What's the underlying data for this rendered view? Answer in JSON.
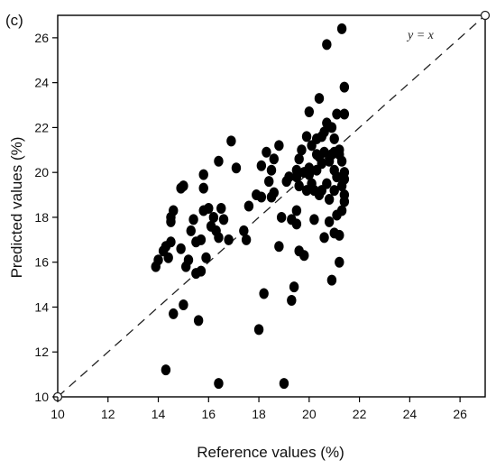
{
  "panel_label": "(c)",
  "chart_data": {
    "type": "scatter",
    "title": "",
    "xlabel": "Reference values (%)",
    "ylabel": "Predicted values (%)",
    "xlim": [
      10,
      27
    ],
    "ylim": [
      10,
      27
    ],
    "xticks": [
      10,
      12,
      14,
      16,
      18,
      20,
      22,
      24,
      26
    ],
    "yticks": [
      10,
      12,
      14,
      16,
      18,
      20,
      22,
      24,
      26
    ],
    "grid": false,
    "reference_line": {
      "label": "y = x",
      "style": "dashed",
      "from": [
        10,
        10
      ],
      "to": [
        27,
        27
      ]
    },
    "point_color": "#000000",
    "points": [
      [
        13.9,
        15.8
      ],
      [
        14.0,
        16.1
      ],
      [
        14.2,
        16.5
      ],
      [
        14.3,
        16.7
      ],
      [
        14.5,
        16.9
      ],
      [
        14.4,
        16.2
      ],
      [
        14.5,
        17.8
      ],
      [
        14.5,
        18.0
      ],
      [
        14.6,
        18.3
      ],
      [
        14.6,
        13.7
      ],
      [
        14.3,
        11.2
      ],
      [
        14.9,
        16.6
      ],
      [
        14.9,
        19.3
      ],
      [
        15.0,
        19.4
      ],
      [
        15.0,
        14.1
      ],
      [
        15.1,
        15.8
      ],
      [
        15.2,
        16.1
      ],
      [
        15.3,
        17.4
      ],
      [
        15.4,
        17.9
      ],
      [
        15.5,
        16.9
      ],
      [
        15.5,
        15.5
      ],
      [
        15.6,
        13.4
      ],
      [
        15.7,
        15.6
      ],
      [
        15.7,
        17.0
      ],
      [
        15.8,
        19.9
      ],
      [
        15.8,
        19.3
      ],
      [
        15.8,
        18.3
      ],
      [
        15.9,
        16.2
      ],
      [
        16.0,
        18.4
      ],
      [
        16.1,
        17.6
      ],
      [
        16.2,
        18.0
      ],
      [
        16.3,
        17.4
      ],
      [
        16.4,
        17.1
      ],
      [
        16.4,
        20.5
      ],
      [
        16.4,
        10.6
      ],
      [
        16.5,
        18.4
      ],
      [
        16.6,
        17.9
      ],
      [
        16.8,
        17.0
      ],
      [
        16.9,
        21.4
      ],
      [
        17.1,
        20.2
      ],
      [
        17.4,
        17.4
      ],
      [
        17.5,
        17.0
      ],
      [
        17.6,
        18.5
      ],
      [
        17.9,
        19.0
      ],
      [
        18.0,
        13.0
      ],
      [
        18.1,
        20.3
      ],
      [
        18.1,
        18.9
      ],
      [
        18.2,
        14.6
      ],
      [
        18.3,
        20.9
      ],
      [
        18.4,
        19.6
      ],
      [
        18.5,
        20.1
      ],
      [
        18.5,
        18.9
      ],
      [
        18.6,
        20.6
      ],
      [
        18.6,
        19.1
      ],
      [
        18.8,
        21.2
      ],
      [
        18.8,
        16.7
      ],
      [
        18.9,
        18.0
      ],
      [
        19.0,
        10.6
      ],
      [
        19.1,
        19.6
      ],
      [
        19.2,
        19.8
      ],
      [
        19.3,
        17.9
      ],
      [
        19.3,
        14.3
      ],
      [
        19.4,
        14.9
      ],
      [
        19.5,
        18.3
      ],
      [
        19.5,
        17.7
      ],
      [
        19.5,
        20.1
      ],
      [
        19.6,
        20.6
      ],
      [
        19.6,
        19.4
      ],
      [
        19.6,
        16.5
      ],
      [
        19.7,
        21.0
      ],
      [
        19.8,
        16.3
      ],
      [
        19.8,
        20.0
      ],
      [
        19.9,
        19.2
      ],
      [
        19.9,
        21.6
      ],
      [
        20.0,
        20.2
      ],
      [
        20.0,
        22.7
      ],
      [
        20.1,
        21.2
      ],
      [
        20.1,
        19.5
      ],
      [
        20.2,
        17.9
      ],
      [
        20.2,
        19.2
      ],
      [
        20.3,
        20.1
      ],
      [
        20.3,
        21.5
      ],
      [
        20.4,
        20.7
      ],
      [
        20.4,
        19.0
      ],
      [
        20.4,
        23.3
      ],
      [
        20.5,
        19.2
      ],
      [
        20.5,
        20.4
      ],
      [
        20.6,
        21.8
      ],
      [
        20.6,
        20.9
      ],
      [
        20.6,
        17.1
      ],
      [
        20.7,
        22.2
      ],
      [
        20.7,
        19.5
      ],
      [
        20.7,
        25.7
      ],
      [
        20.8,
        20.5
      ],
      [
        20.8,
        17.8
      ],
      [
        20.8,
        18.8
      ],
      [
        20.9,
        15.2
      ],
      [
        20.9,
        22.0
      ],
      [
        21.0,
        21.5
      ],
      [
        21.0,
        20.1
      ],
      [
        21.0,
        19.2
      ],
      [
        21.0,
        17.3
      ],
      [
        21.1,
        22.6
      ],
      [
        21.1,
        19.8
      ],
      [
        21.1,
        18.1
      ],
      [
        21.2,
        20.8
      ],
      [
        21.2,
        21.0
      ],
      [
        21.2,
        16.0
      ],
      [
        21.2,
        17.2
      ],
      [
        21.3,
        20.5
      ],
      [
        21.3,
        19.4
      ],
      [
        21.3,
        18.3
      ],
      [
        21.3,
        26.4
      ],
      [
        21.4,
        22.6
      ],
      [
        21.4,
        23.8
      ],
      [
        21.4,
        20.0
      ],
      [
        21.4,
        19.0
      ],
      [
        21.4,
        18.7
      ],
      [
        21.4,
        19.7
      ],
      [
        20.0,
        19.9
      ],
      [
        19.5,
        19.8
      ],
      [
        20.3,
        20.8
      ],
      [
        20.5,
        21.6
      ],
      [
        20.9,
        20.8
      ],
      [
        21.0,
        20.9
      ]
    ]
  }
}
